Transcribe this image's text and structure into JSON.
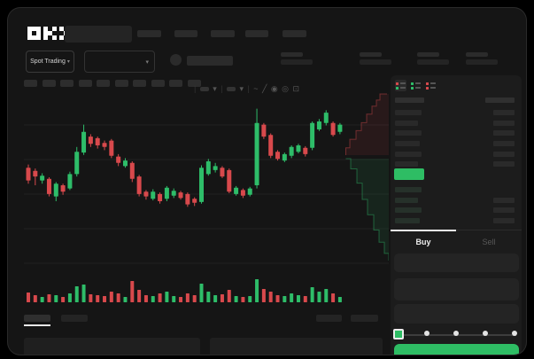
{
  "header": {
    "logo_text": "OKX"
  },
  "toolbar": {
    "market_selector_label": "Spot Trading"
  },
  "trade_panel": {
    "buy_label": "Buy",
    "sell_label": "Sell"
  },
  "colors": {
    "green": "#2ebd69",
    "red": "#d8494c",
    "buy_button": "#2ebd64",
    "window_bg": "#151515",
    "panel_bg": "#1c1c1c",
    "grid": "#212121"
  },
  "order_book": {
    "ask_rows": [
      {
        "l": 30,
        "r": 24
      },
      {
        "l": 26,
        "r": 24
      },
      {
        "l": 30,
        "r": 24
      },
      {
        "l": 28,
        "r": 24
      },
      {
        "l": 30,
        "r": 24
      },
      {
        "l": 26,
        "r": 24
      }
    ],
    "spread_bar": {
      "width": 34,
      "height": 13,
      "color": "#2ebd64"
    },
    "bid_rows": [
      {
        "l": 30,
        "r": 0
      },
      {
        "l": 26,
        "r": 24
      },
      {
        "l": 30,
        "r": 24
      },
      {
        "l": 28,
        "r": 24
      }
    ]
  },
  "slider": {
    "positions_pct": [
      0,
      25,
      50,
      75,
      100
    ],
    "value_pct": 0
  },
  "chart_data": {
    "type": "candlestick",
    "title": "",
    "ylim": [
      0,
      100
    ],
    "grid": true,
    "candles": [
      [
        61,
        63,
        51,
        53
      ],
      [
        59,
        60.5,
        50,
        55.5
      ],
      [
        53,
        57.5,
        51,
        56
      ],
      [
        54,
        55,
        43,
        44.5
      ],
      [
        43,
        52,
        40,
        51
      ],
      [
        50,
        51,
        44,
        46
      ],
      [
        48,
        58.5,
        47,
        57
      ],
      [
        57,
        74,
        55.5,
        71
      ],
      [
        70.5,
        88,
        69,
        83.5
      ],
      [
        80.5,
        82,
        74,
        76
      ],
      [
        79.5,
        80.5,
        73,
        75
      ],
      [
        76.5,
        78,
        72,
        74
      ],
      [
        78,
        79,
        67,
        68.5
      ],
      [
        68,
        69.5,
        62,
        64
      ],
      [
        62,
        67,
        61,
        65.5
      ],
      [
        64,
        65,
        52,
        54
      ],
      [
        55.5,
        56.5,
        43,
        44.5
      ],
      [
        46,
        47,
        41,
        43
      ],
      [
        41.5,
        47.5,
        40.5,
        46
      ],
      [
        44.5,
        45.5,
        38.5,
        40
      ],
      [
        41.5,
        49.5,
        40,
        48.5
      ],
      [
        43.5,
        48,
        42,
        46.5
      ],
      [
        45.5,
        46.5,
        41,
        42
      ],
      [
        44.5,
        45.5,
        36.5,
        38
      ],
      [
        41.5,
        42.5,
        37,
        39
      ],
      [
        39.5,
        62.5,
        38.5,
        61
      ],
      [
        57,
        66.5,
        56,
        65
      ],
      [
        59.5,
        64,
        58,
        62
      ],
      [
        61,
        62,
        54.5,
        55.5
      ],
      [
        59.5,
        60.5,
        45,
        46
      ],
      [
        44.5,
        49.5,
        43.5,
        48.5
      ],
      [
        47,
        48,
        42,
        43.5
      ],
      [
        44,
        49,
        43,
        48
      ],
      [
        50,
        98,
        48,
        89
      ],
      [
        88,
        89,
        79,
        80.5
      ],
      [
        81.5,
        82.5,
        67,
        68.5
      ],
      [
        71,
        72,
        65.5,
        66.5
      ],
      [
        65.5,
        70.5,
        64.5,
        69.5
      ],
      [
        68.5,
        75,
        67,
        74
      ],
      [
        71,
        76,
        70,
        75
      ],
      [
        73.5,
        74.5,
        68,
        69.5
      ],
      [
        73.5,
        90,
        72,
        89
      ],
      [
        85,
        91.5,
        84,
        90
      ],
      [
        89,
        97,
        87.5,
        95.5
      ],
      [
        89,
        90,
        80.5,
        81.5
      ],
      [
        83.5,
        89,
        82,
        88
      ]
    ],
    "volume": [
      11,
      8,
      6,
      9,
      8,
      6,
      10,
      18,
      20,
      9,
      8,
      7,
      12,
      10,
      6,
      24,
      14,
      8,
      7,
      10,
      12,
      7,
      6,
      10,
      8,
      21,
      12,
      8,
      9,
      14,
      7,
      6,
      7,
      26,
      15,
      12,
      8,
      7,
      10,
      8,
      7,
      17,
      12,
      15,
      10,
      6
    ],
    "depth": {
      "asks": [
        [
          0.96,
          0.0
        ],
        [
          0.8,
          0.1
        ],
        [
          0.72,
          0.2
        ],
        [
          0.62,
          0.33
        ],
        [
          0.5,
          0.47
        ],
        [
          0.38,
          0.6
        ],
        [
          0.26,
          0.74
        ],
        [
          0.12,
          0.88
        ],
        [
          0.03,
          1.0
        ]
      ],
      "bids": [
        [
          0.03,
          0.0
        ],
        [
          0.14,
          0.1
        ],
        [
          0.28,
          0.24
        ],
        [
          0.4,
          0.4
        ],
        [
          0.52,
          0.55
        ],
        [
          0.66,
          0.7
        ],
        [
          0.78,
          0.82
        ],
        [
          0.9,
          0.93
        ],
        [
          1.0,
          1.0
        ]
      ]
    }
  }
}
